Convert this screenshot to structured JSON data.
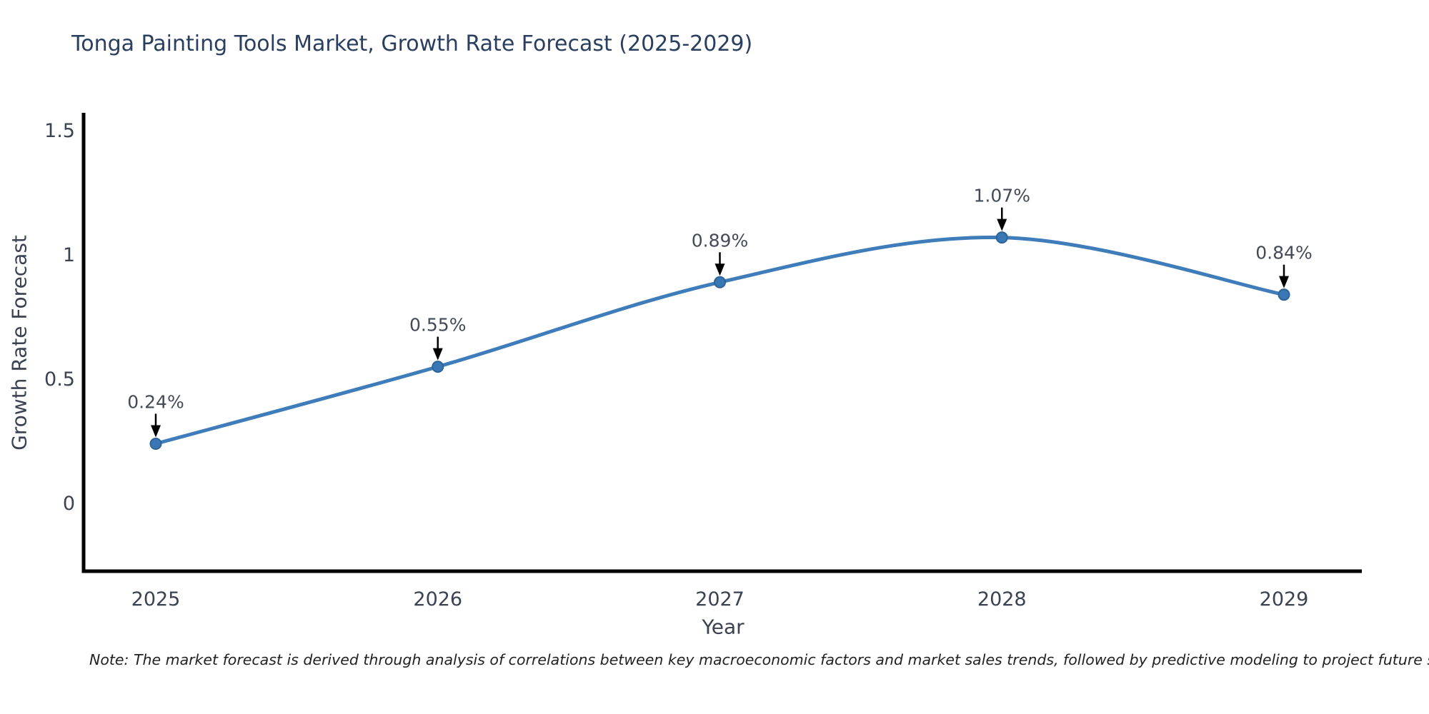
{
  "title": "Tonga Painting Tools Market, Growth Rate Forecast (2025-2029)",
  "note": "Note: The market forecast is derived through analysis of correlations between key macroeconomic factors and market sales trends, followed by predictive modeling to project future sales",
  "chart_data": {
    "type": "line",
    "line_shape": "spline",
    "title": "Tonga Painting Tools Market, Growth Rate Forecast (2025-2029)",
    "xlabel": "Year",
    "ylabel": "Growth Rate Forecast",
    "x": [
      2025,
      2026,
      2027,
      2028,
      2029
    ],
    "values": [
      0.24,
      0.55,
      0.89,
      1.07,
      0.84
    ],
    "point_labels": [
      "0.24%",
      "0.55%",
      "0.89%",
      "1.07%",
      "0.84%"
    ],
    "xtick_labels": [
      "2025",
      "2026",
      "2027",
      "2028",
      "2029"
    ],
    "yticks": [
      0,
      0.5,
      1,
      1.5
    ],
    "ytick_labels": [
      "0",
      "0.5",
      "1",
      "1.5"
    ],
    "xlim": [
      2024.74,
      2029.28
    ],
    "ylim": [
      -0.27,
      1.57
    ],
    "grid": false,
    "legend": "none",
    "annotation_arrows": true,
    "colors": {
      "line": "#3e7cba",
      "marker_fill": "#3a78b5",
      "marker_edge": "#2e6397",
      "axis_line": "#000000",
      "title_text": "#2a3f5f",
      "tick_text": "#3b4252",
      "annotation_text": "#444a57",
      "arrow": "#000000",
      "note_text": "#222222",
      "background": "#ffffff"
    }
  }
}
